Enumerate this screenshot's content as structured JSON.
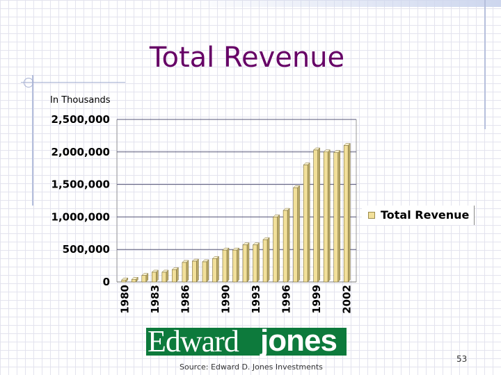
{
  "slide": {
    "title": "Total Revenue",
    "units_label": "In Thousands",
    "source": "Source: Edward D. Jones Investments",
    "page_number": "53",
    "logo_part1": "Edward",
    "logo_part2": "jones"
  },
  "colors": {
    "title": "#660066",
    "bar_front": "#f2e09a",
    "bar_side": "#b8a866",
    "bar_top": "#fbf3cf",
    "logo_bg": "#0d7a3c"
  },
  "chart_data": {
    "type": "bar",
    "title": "Total Revenue",
    "ylabel": "In Thousands",
    "xlabel": "",
    "ylim": [
      0,
      2500000
    ],
    "y_ticks": [
      "0",
      "500,000",
      "1,000,000",
      "1,500,000",
      "2,000,000",
      "2,500,000"
    ],
    "x_tick_labels": [
      "1980",
      "1983",
      "1986",
      "1990",
      "1993",
      "1996",
      "1999",
      "2002"
    ],
    "categories": [
      "1980",
      "1981",
      "1982",
      "1983",
      "1984",
      "1985",
      "1986",
      "1987",
      "1988",
      "1989",
      "1990",
      "1991",
      "1992",
      "1993",
      "1994",
      "1995",
      "1996",
      "1997",
      "1998",
      "1999",
      "2000",
      "2001",
      "2002"
    ],
    "series": [
      {
        "name": "Total Revenue",
        "values": [
          30000,
          40000,
          100000,
          150000,
          150000,
          190000,
          300000,
          320000,
          310000,
          360000,
          490000,
          490000,
          570000,
          570000,
          650000,
          1000000,
          1100000,
          1450000,
          1800000,
          2030000,
          2000000,
          1990000,
          2100000
        ]
      }
    ],
    "grid": true,
    "legend": "right"
  }
}
